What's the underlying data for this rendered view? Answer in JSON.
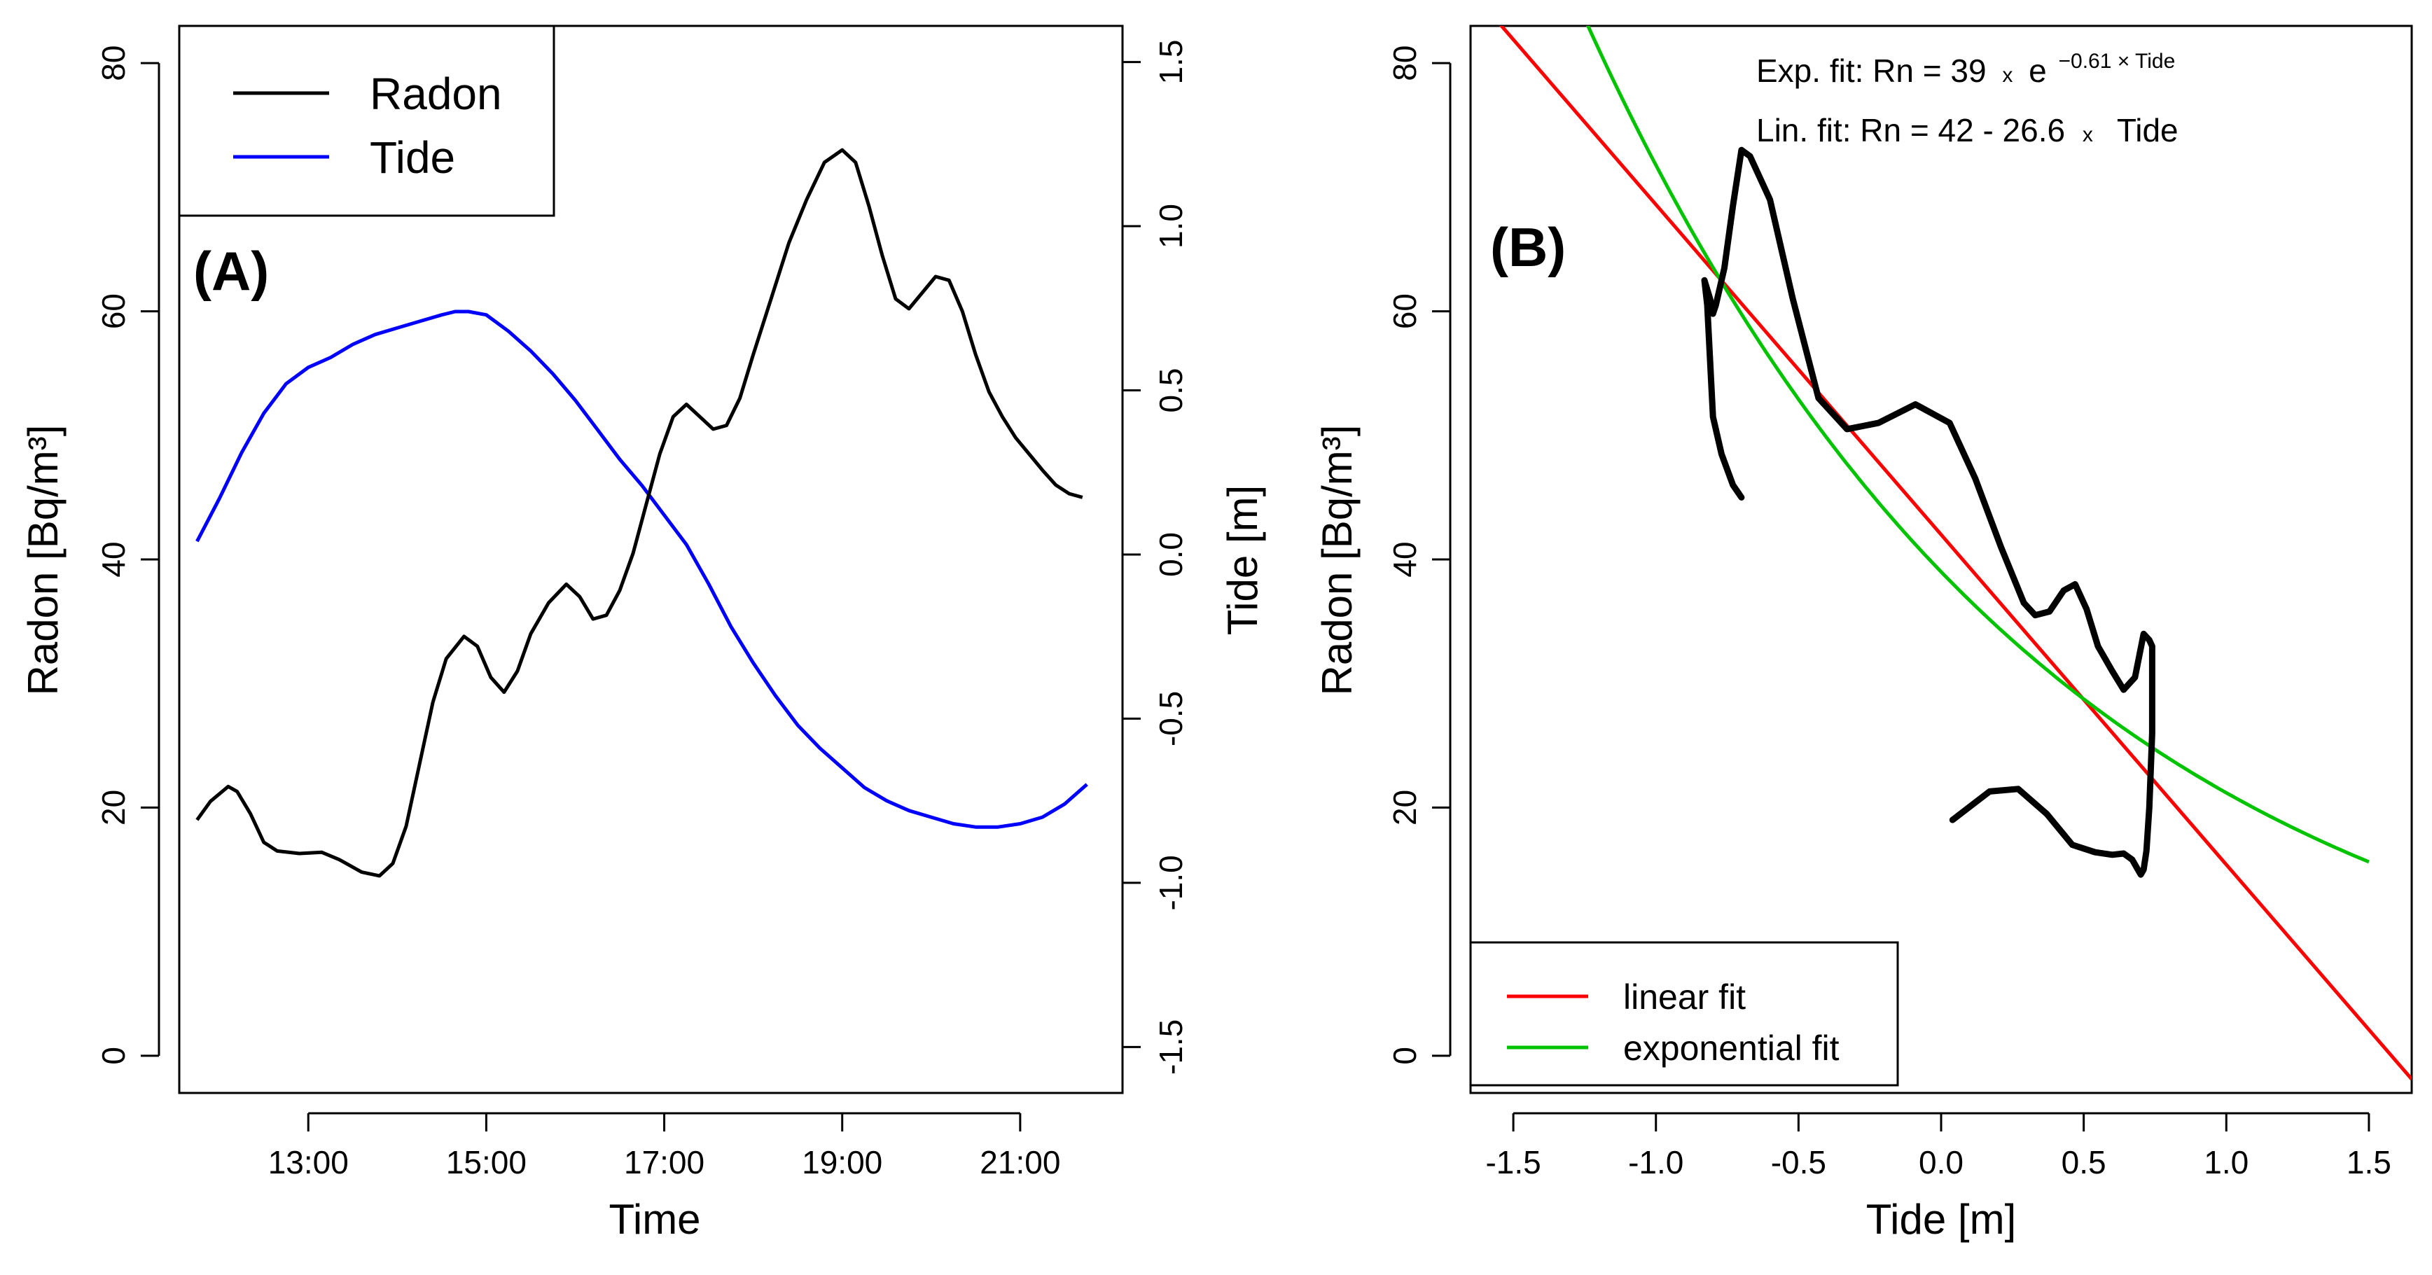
{
  "colors": {
    "radon": "#000000",
    "tide": "#0000ff",
    "linear": "#ff0000",
    "exponential": "#00c400"
  },
  "chart_data": [
    {
      "type": "line",
      "panel_label": "(A)",
      "xlabel": "Time",
      "ylabel": "Radon [Bq/m³]",
      "y2label": "Tide [m]",
      "xlim": [
        11.55,
        22.15
      ],
      "xticks": [
        13,
        15,
        17,
        19,
        21
      ],
      "xtick_labels": [
        "13:00",
        "15:00",
        "17:00",
        "19:00",
        "21:00"
      ],
      "ylim": [
        -3,
        83
      ],
      "yticks": [
        0,
        20,
        40,
        60,
        80
      ],
      "ytick_labels": [
        "0",
        "20",
        "40",
        "60",
        "80"
      ],
      "y2lim": [
        -1.64,
        1.61
      ],
      "y2ticks": [
        -1.5,
        -1.0,
        -0.5,
        0.0,
        0.5,
        1.0,
        1.5
      ],
      "y2tick_labels": [
        "-1.5",
        "-1.0",
        "-0.5",
        "0.0",
        "0.5",
        "1.0",
        "1.5"
      ],
      "legend": {
        "position": "top-left",
        "entries": [
          "Radon",
          "Tide"
        ]
      },
      "series": [
        {
          "name": "Radon",
          "axis": "left",
          "x": [
            11.75,
            11.9,
            12.1,
            12.2,
            12.35,
            12.5,
            12.65,
            12.9,
            13.15,
            13.35,
            13.6,
            13.8,
            13.95,
            14.1,
            14.25,
            14.4,
            14.55,
            14.75,
            14.9,
            15.05,
            15.2,
            15.35,
            15.5,
            15.7,
            15.9,
            16.05,
            16.2,
            16.35,
            16.5,
            16.65,
            16.8,
            16.95,
            17.1,
            17.25,
            17.4,
            17.55,
            17.7,
            17.85,
            18.0,
            18.2,
            18.4,
            18.6,
            18.8,
            19.0,
            19.15,
            19.3,
            19.45,
            19.6,
            19.75,
            19.9,
            20.05,
            20.2,
            20.35,
            20.5,
            20.65,
            20.8,
            20.95,
            21.1,
            21.25,
            21.4,
            21.55,
            21.7
          ],
          "values": [
            19.0,
            20.5,
            21.7,
            21.3,
            19.5,
            17.2,
            16.5,
            16.3,
            16.4,
            15.8,
            14.8,
            14.5,
            15.5,
            18.5,
            23.5,
            28.5,
            32.0,
            33.8,
            33.0,
            30.5,
            29.3,
            31.0,
            34.0,
            36.5,
            38.0,
            37.0,
            35.2,
            35.5,
            37.5,
            40.5,
            44.5,
            48.5,
            51.5,
            52.5,
            51.5,
            50.5,
            50.8,
            53.0,
            56.5,
            61.0,
            65.5,
            69.0,
            72.0,
            73.0,
            72.0,
            68.5,
            64.5,
            61.0,
            60.2,
            61.5,
            62.8,
            62.5,
            60.0,
            56.5,
            53.5,
            51.5,
            49.8,
            48.5,
            47.2,
            46.0,
            45.3,
            45.0
          ]
        },
        {
          "name": "Tide",
          "axis": "right",
          "x": [
            11.75,
            12.0,
            12.25,
            12.5,
            12.75,
            13.0,
            13.25,
            13.5,
            13.75,
            14.0,
            14.25,
            14.5,
            14.65,
            14.8,
            15.0,
            15.25,
            15.5,
            15.75,
            16.0,
            16.25,
            16.5,
            16.75,
            17.0,
            17.25,
            17.5,
            17.75,
            18.0,
            18.25,
            18.5,
            18.75,
            19.0,
            19.25,
            19.5,
            19.75,
            20.0,
            20.25,
            20.5,
            20.75,
            21.0,
            21.25,
            21.5,
            21.75
          ],
          "values": [
            0.04,
            0.17,
            0.31,
            0.43,
            0.52,
            0.57,
            0.6,
            0.64,
            0.67,
            0.69,
            0.71,
            0.73,
            0.74,
            0.74,
            0.73,
            0.68,
            0.62,
            0.55,
            0.47,
            0.38,
            0.29,
            0.21,
            0.12,
            0.03,
            -0.09,
            -0.22,
            -0.33,
            -0.43,
            -0.52,
            -0.59,
            -0.65,
            -0.71,
            -0.75,
            -0.78,
            -0.8,
            -0.82,
            -0.83,
            -0.83,
            -0.82,
            -0.8,
            -0.76,
            -0.7
          ]
        }
      ]
    },
    {
      "type": "scatter",
      "panel_label": "(B)",
      "xlabel": "Tide [m]",
      "ylabel": "Radon [Bq/m³]",
      "xlim": [
        -1.65,
        1.65
      ],
      "xticks": [
        -1.5,
        -1.0,
        -0.5,
        0.0,
        0.5,
        1.0,
        1.5
      ],
      "xtick_labels": [
        "-1.5",
        "-1.0",
        "-0.5",
        "0.0",
        "0.5",
        "1.0",
        "1.5"
      ],
      "ylim": [
        -3,
        83
      ],
      "yticks": [
        0,
        20,
        40,
        60,
        80
      ],
      "ytick_labels": [
        "0",
        "20",
        "40",
        "60",
        "80"
      ],
      "annotations": {
        "exp_prefix": "Exp. fit: Rn = 39",
        "exp_times": "x",
        "exp_base": "e",
        "exp_power": "−0.61 × Tide",
        "lin_prefix": "Lin. fit: Rn = 42 - 26.6",
        "lin_times": "x",
        "lin_suffix": "Tide"
      },
      "legend": {
        "position": "bottom-left",
        "entries": [
          "linear fit",
          "exponential fit"
        ]
      },
      "series": [
        {
          "name": "Radon vs Tide",
          "x": [
            -0.7,
            -0.73,
            -0.77,
            -0.8,
            -0.81,
            -0.82,
            -0.83,
            -0.81,
            -0.8,
            -0.79,
            -0.76,
            -0.73,
            -0.7,
            -0.67,
            -0.6,
            -0.52,
            -0.43,
            -0.33,
            -0.22,
            -0.09,
            0.03,
            0.12,
            0.21,
            0.29,
            0.33,
            0.38,
            0.43,
            0.47,
            0.51,
            0.55,
            0.6,
            0.64,
            0.68,
            0.71,
            0.73,
            0.74,
            0.74,
            0.73,
            0.72,
            0.71,
            0.7,
            0.69,
            0.67,
            0.64,
            0.6,
            0.54,
            0.46,
            0.37,
            0.27,
            0.17,
            0.04
          ],
          "values": [
            45.0,
            46.0,
            48.5,
            51.5,
            56.0,
            60.5,
            62.5,
            61.0,
            59.8,
            60.5,
            63.5,
            68.5,
            73.0,
            72.5,
            69.0,
            61.0,
            53.0,
            50.5,
            51.0,
            52.5,
            51.0,
            46.5,
            41.0,
            36.5,
            35.5,
            35.8,
            37.5,
            38.0,
            36.0,
            33.0,
            31.0,
            29.5,
            30.5,
            34.0,
            33.5,
            33.0,
            26.0,
            20.0,
            16.5,
            15.0,
            14.6,
            15.0,
            15.8,
            16.3,
            16.2,
            16.4,
            17.0,
            19.5,
            21.5,
            21.3,
            19.0
          ]
        },
        {
          "name": "linear fit",
          "intercept": 42,
          "slope": -26.6,
          "x_range": [
            -1.65,
            1.65
          ]
        },
        {
          "name": "exponential fit",
          "a": 39,
          "b": -0.61,
          "x_range": [
            -1.25,
            1.5
          ]
        }
      ]
    }
  ]
}
